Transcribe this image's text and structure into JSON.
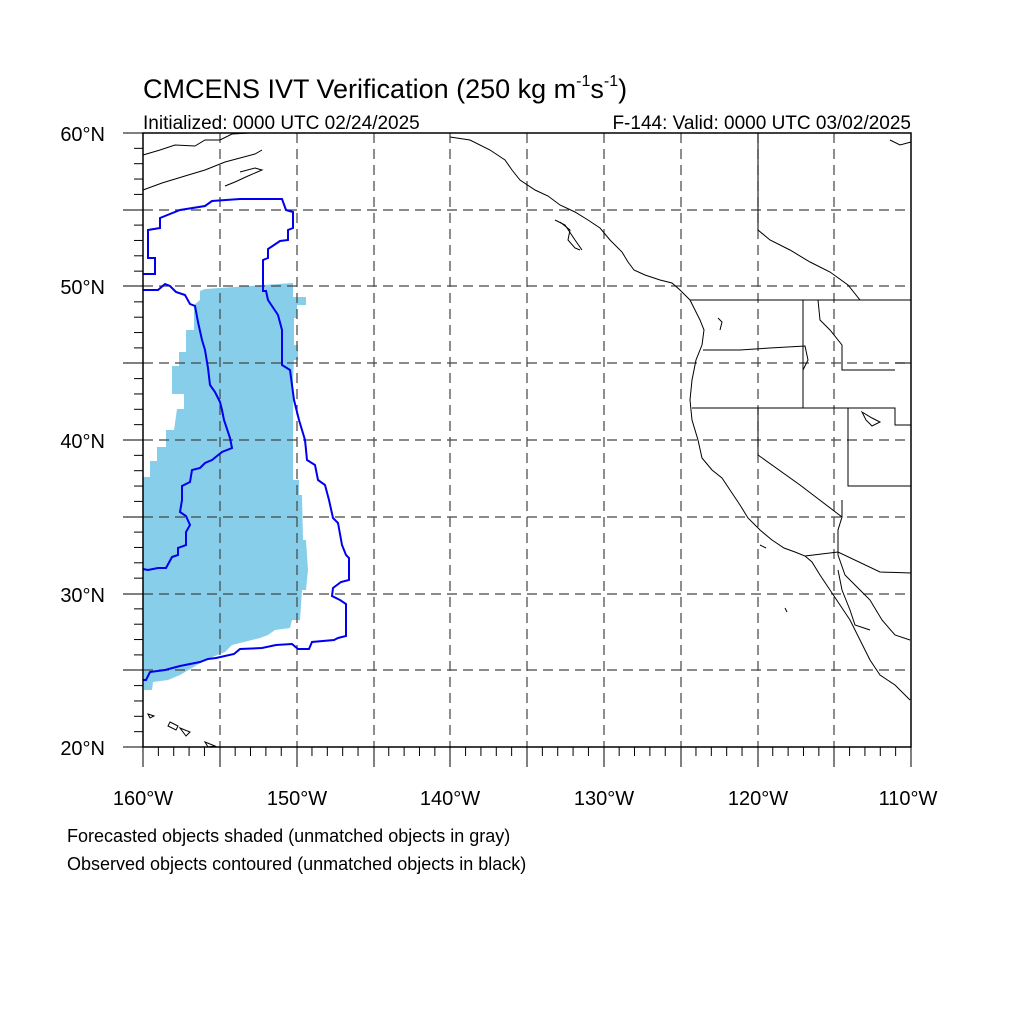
{
  "title": {
    "main": "CMCENS IVT Verification (250 kg m",
    "sup1": "-1",
    "mid": "s",
    "sup2": "-1",
    "end": ")"
  },
  "subtitle": {
    "left": "Initialized: 0000 UTC 02/24/2025",
    "right": "F-144: Valid: 0000 UTC 03/02/2025"
  },
  "lat_labels": [
    "60°N",
    "50°N",
    "40°N",
    "30°N",
    "20°N"
  ],
  "lon_labels": [
    "160°W",
    "150°W",
    "140°W",
    "130°W",
    "120°W",
    "110°W"
  ],
  "footnotes": [
    "Forecasted objects shaded (unmatched objects in gray)",
    "Observed objects contoured (unmatched objects in black)"
  ],
  "map": {
    "lon_range": [
      -160,
      -110
    ],
    "lat_range": [
      20,
      60
    ],
    "gridline_spacing_deg": 5,
    "forecast_fill_color": "#87ceeb",
    "observed_contour_color": "#0000ee"
  }
}
